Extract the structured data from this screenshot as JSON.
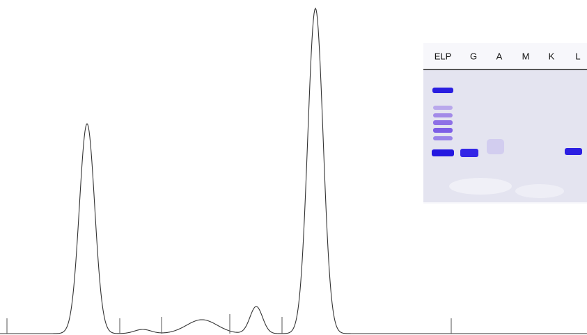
{
  "gel": {
    "lanes": [
      "ELP",
      "G",
      "A",
      "M",
      "K",
      "L"
    ]
  }
}
